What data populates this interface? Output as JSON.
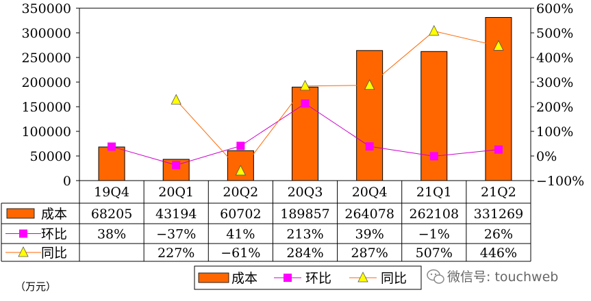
{
  "chart_data": {
    "type": "bar",
    "categories": [
      "19Q4",
      "20Q1",
      "20Q2",
      "20Q3",
      "20Q4",
      "21Q1",
      "21Q2"
    ],
    "series": [
      {
        "name": "成本",
        "kind": "bar",
        "axis": "left",
        "color": "#FF6600",
        "values": [
          68205,
          43194,
          60702,
          189857,
          264078,
          262108,
          331269
        ],
        "labels": [
          "68205",
          "43194",
          "60702",
          "189857",
          "264078",
          "262108",
          "331269"
        ]
      },
      {
        "name": "环比",
        "kind": "line",
        "axis": "right",
        "color": "#CC00CC",
        "marker": "square",
        "marker_color": "#FF00FF",
        "values": [
          38,
          -37,
          41,
          213,
          39,
          -1,
          26
        ],
        "labels": [
          "38%",
          "−37%",
          "41%",
          "213%",
          "39%",
          "−1%",
          "26%"
        ]
      },
      {
        "name": "同比",
        "kind": "line",
        "axis": "right",
        "color": "#FF6600",
        "marker": "triangle",
        "marker_color": "#FFFF00",
        "values": [
          null,
          227,
          -61,
          284,
          287,
          507,
          446
        ],
        "labels": [
          "",
          "227%",
          "−61%",
          "284%",
          "287%",
          "507%",
          "446%"
        ]
      }
    ],
    "left_axis": {
      "min": 0,
      "max": 350000,
      "step": 50000,
      "ticks": [
        "0",
        "50000",
        "100000",
        "150000",
        "200000",
        "250000",
        "300000",
        "350000"
      ]
    },
    "right_axis": {
      "min": -100,
      "max": 600,
      "step": 100,
      "ticks": [
        "−100%",
        "0%",
        "100%",
        "200%",
        "300%",
        "400%",
        "500%",
        "600%"
      ]
    },
    "grid": false,
    "legend": "bottom-center",
    "data_table": true
  },
  "unit_label": "（万元）",
  "watermark": "微信号: touchweb"
}
